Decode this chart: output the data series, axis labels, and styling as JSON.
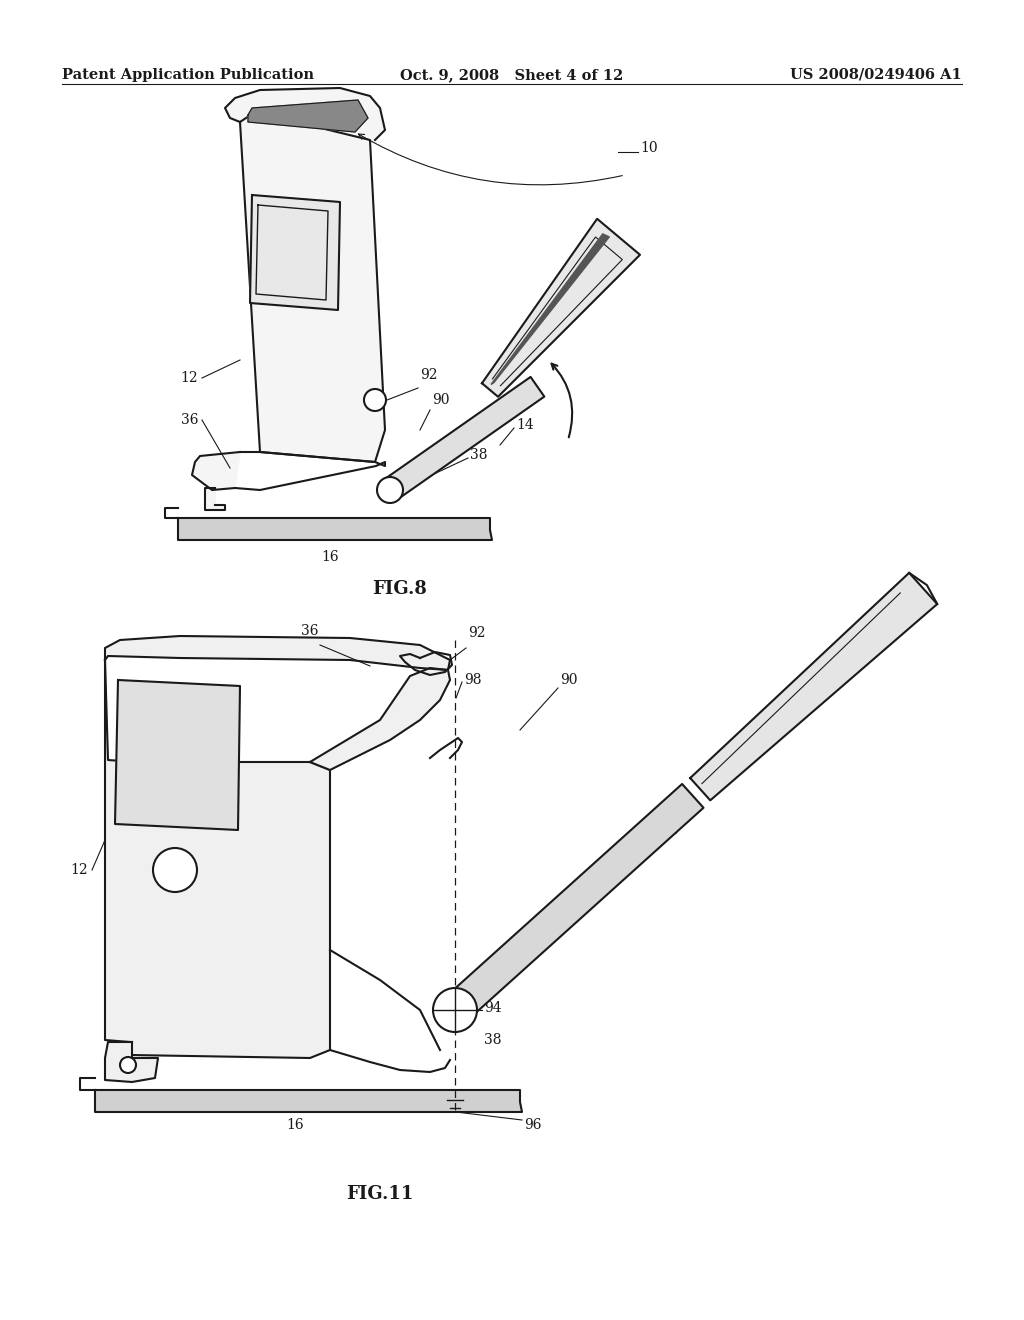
{
  "background_color": "#ffffff",
  "page_header": {
    "left": "Patent Application Publication",
    "center": "Oct. 9, 2008   Sheet 4 of 12",
    "right": "US 2008/0249406 A1"
  },
  "line_color": "#1a1a1a",
  "text_color": "#1a1a1a",
  "header_fontsize": 10.5,
  "label_fontsize": 10,
  "fig_label_fontsize": 13
}
